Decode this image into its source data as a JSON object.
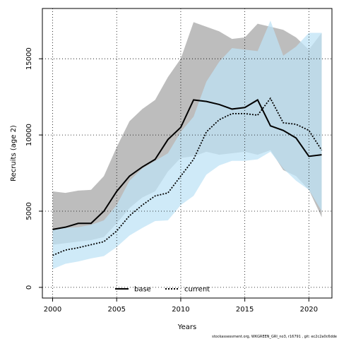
{
  "chart_data": {
    "type": "line",
    "title": "",
    "xlabel": "Years",
    "ylabel": "Recruits (age 2)",
    "xlim": [
      1999.2,
      2021.8
    ],
    "ylim": [
      -700,
      18300
    ],
    "x_ticks": [
      2000,
      2005,
      2010,
      2015,
      2020
    ],
    "y_ticks": [
      0,
      5000,
      10000,
      15000
    ],
    "grid": true,
    "legend_position": "bottom-center",
    "x": [
      2000,
      2001,
      2002,
      2003,
      2004,
      2005,
      2006,
      2007,
      2008,
      2009,
      2010,
      2011,
      2012,
      2013,
      2014,
      2015,
      2016,
      2017,
      2018,
      2019,
      2020,
      2021
    ],
    "series": [
      {
        "name": "base",
        "color": "#000000",
        "dash": "solid",
        "band_color": "#bdbdbd",
        "values": [
          3800,
          3950,
          4200,
          4200,
          5000,
          6300,
          7300,
          7900,
          8400,
          9700,
          10500,
          12300,
          12200,
          12000,
          11700,
          11800,
          12300,
          10600,
          10300,
          9800,
          8600,
          8700
        ],
        "lower": [
          2800,
          2900,
          3000,
          3100,
          3300,
          4200,
          5200,
          5900,
          6300,
          7600,
          8500,
          8600,
          8900,
          8700,
          8800,
          8900,
          8700,
          9000,
          7700,
          7300,
          6400,
          4600
        ],
        "upper": [
          6300,
          6200,
          6350,
          6400,
          7300,
          9200,
          10900,
          11700,
          12300,
          13800,
          15000,
          17400,
          17100,
          16800,
          16300,
          16400,
          17300,
          17100,
          16900,
          16400,
          15600,
          16700
        ]
      },
      {
        "name": "current",
        "color": "#000000",
        "dash": "dotted",
        "band_color": "#bfe3f5",
        "values": [
          2100,
          2450,
          2600,
          2800,
          3000,
          3700,
          4700,
          5400,
          6000,
          6200,
          7300,
          8400,
          10200,
          11000,
          11400,
          11400,
          11300,
          12400,
          10800,
          10700,
          10300,
          9000
        ],
        "lower": [
          1200,
          1550,
          1700,
          1900,
          2050,
          2650,
          3400,
          3900,
          4350,
          4400,
          5400,
          6000,
          7400,
          8000,
          8300,
          8300,
          8400,
          8900,
          7800,
          7000,
          6400,
          5000
        ],
        "upper": [
          3800,
          3900,
          3950,
          4100,
          4400,
          5400,
          7000,
          7800,
          8300,
          8800,
          10200,
          11200,
          13500,
          14800,
          15700,
          15600,
          15500,
          17500,
          15200,
          15800,
          16700,
          16700
        ]
      }
    ]
  },
  "footnote": "stockassessment.org, WKGREEN_GRI_no3, r16791 , git: ec2c2a0c6dde"
}
